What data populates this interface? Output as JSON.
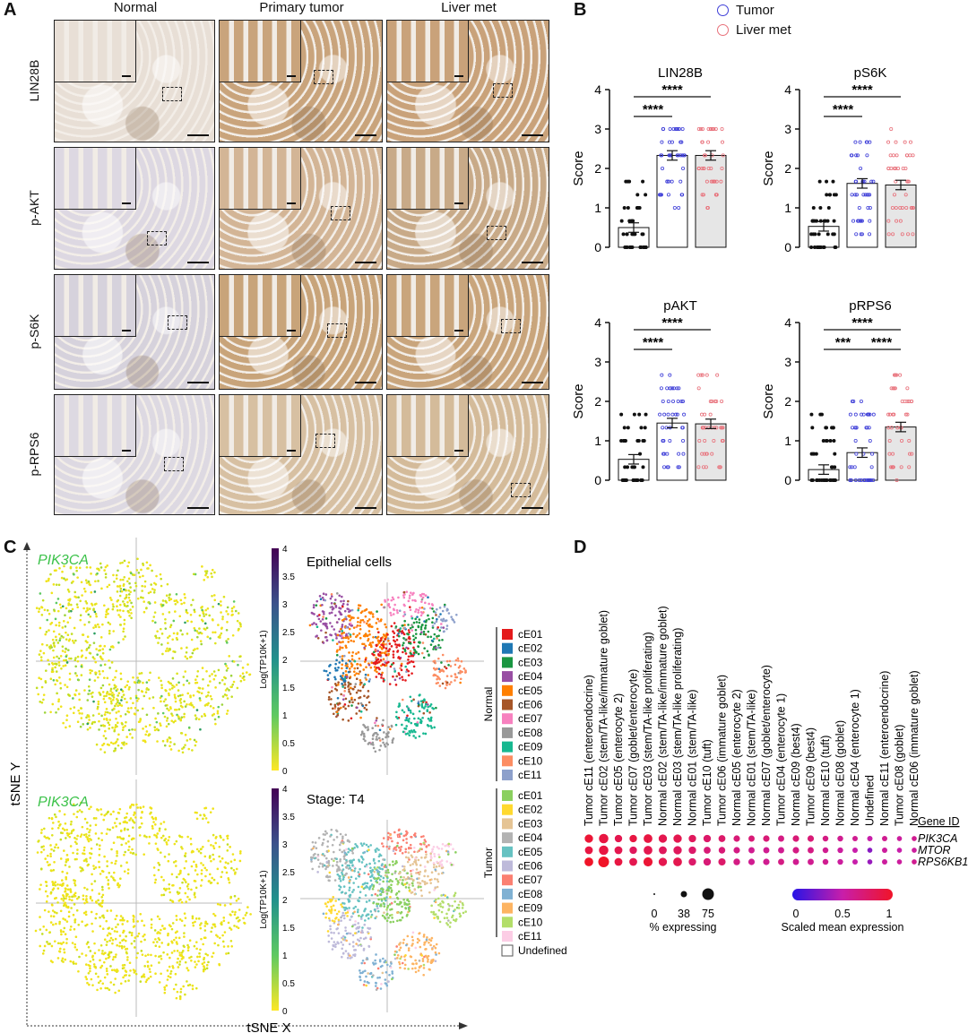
{
  "panelA": {
    "letter": "A",
    "columns": [
      "Normal",
      "Primary tumor",
      "Liver met"
    ],
    "rows": [
      "LIN28B",
      "p-AKT",
      "p-S6K",
      "p-RPS6"
    ]
  },
  "panelB": {
    "letter": "B",
    "legend": [
      {
        "label": "Tumor",
        "color": "#3f3fd8"
      },
      {
        "label": "Liver met",
        "color": "#e8707a"
      }
    ]
  },
  "panelC": {
    "letter": "C",
    "gene": "PIK3CA",
    "title_top": "Epithelial cells",
    "title_bottom": "Stage: T4",
    "colorbar_label": "Log(TP10K+1)",
    "colorbar_ticks": [
      "4",
      "3.5",
      "3",
      "2.5",
      "2",
      "1.5",
      "1",
      "0.5",
      "0"
    ],
    "axis_y": "tSNE Y",
    "axis_x": "tSNE X",
    "group_normal": "Normal",
    "group_tumor": "Tumor",
    "normal_clusters": [
      {
        "name": "cE01",
        "color": "#e41a1c"
      },
      {
        "name": "cE02",
        "color": "#1f78b4"
      },
      {
        "name": "cE03",
        "color": "#1a9641"
      },
      {
        "name": "cE04",
        "color": "#984ea3"
      },
      {
        "name": "cE05",
        "color": "#ff7f00"
      },
      {
        "name": "cE06",
        "color": "#a65628"
      },
      {
        "name": "cE07",
        "color": "#f781bf"
      },
      {
        "name": "cE08",
        "color": "#999999"
      },
      {
        "name": "cE09",
        "color": "#17b890"
      },
      {
        "name": "cE10",
        "color": "#fc8d62"
      },
      {
        "name": "cE11",
        "color": "#8da0cb"
      }
    ],
    "tumor_clusters": [
      {
        "name": "cE01",
        "color": "#8bd05f"
      },
      {
        "name": "cE02",
        "color": "#ffd92f"
      },
      {
        "name": "cE03",
        "color": "#e5c494"
      },
      {
        "name": "cE04",
        "color": "#b3b3b3"
      },
      {
        "name": "cE05",
        "color": "#66c2c2"
      },
      {
        "name": "cE06",
        "color": "#bebada"
      },
      {
        "name": "cE07",
        "color": "#fb8072"
      },
      {
        "name": "cE08",
        "color": "#80b1d3"
      },
      {
        "name": "cE09",
        "color": "#fdb462"
      },
      {
        "name": "cE10",
        "color": "#b3de69"
      },
      {
        "name": "cE11",
        "color": "#fccde5"
      }
    ],
    "undefined_label": "Undefined"
  },
  "panelD": {
    "letter": "D",
    "gene_id_label": "Gene ID",
    "genes": [
      "PIK3CA",
      "MTOR",
      "RPS6KB1"
    ],
    "columns": [
      "Tumor cE11 (enteroendocrine)",
      "Tumor cE02 (stem/TA-like/immature goblet)",
      "Tumor cE05 (enterocyte 2)",
      "Tumor cE07 (goblet/enterocyte)",
      "Tumor cE03 (stem/TA-like proliferating)",
      "Normal cE02 (stem/TA-like/immature goblet)",
      "Normal cE03 (stem/TA-like proliferating)",
      "Normal cE01 (stem/TA-like)",
      "Tumor cE10 (tuft)",
      "Tumor cE06 (immature goblet)",
      "Normal cE05 (enterocyte 2)",
      "Normal cE01 (stem/TA-like)",
      "Normal cE07 (goblet/enterocyte)",
      "Tumor cE04 (enterocyte 1)",
      "Normal cE09 (best4)",
      "Tumor cE09 (best4)",
      "Normal cE10 (tuft)",
      "Normal cE08 (goblet)",
      "Normal cE04 (enterocyte 1)",
      "Undefined",
      "Normal cE11 (enteroendocrine)",
      "Tumor cE08 (goblet)",
      "Normal cE06 (immature goblet)"
    ],
    "size_legend_title": "% expressing",
    "size_legend_ticks": [
      "0",
      "38",
      "75"
    ],
    "color_legend_title": "Scaled mean expression",
    "color_legend_ticks": [
      "0",
      "0.5",
      "1"
    ],
    "dot_matrix": [
      {
        "pct": [
          40,
          55,
          30,
          30,
          45,
          40,
          40,
          30,
          30,
          25,
          20,
          18,
          20,
          18,
          20,
          20,
          15,
          15,
          12,
          12,
          12,
          10,
          10
        ],
        "expr": [
          0.95,
          0.9,
          0.85,
          0.9,
          0.9,
          0.85,
          0.85,
          0.8,
          0.75,
          0.75,
          0.7,
          0.7,
          0.7,
          0.65,
          0.7,
          0.7,
          0.65,
          0.6,
          0.6,
          0.5,
          0.6,
          0.55,
          0.6
        ]
      },
      {
        "pct": [
          35,
          55,
          35,
          30,
          45,
          35,
          40,
          30,
          25,
          22,
          20,
          18,
          18,
          18,
          20,
          18,
          15,
          14,
          12,
          10,
          12,
          10,
          10
        ],
        "expr": [
          0.9,
          0.9,
          0.85,
          0.8,
          0.85,
          0.8,
          0.8,
          0.75,
          0.7,
          0.7,
          0.65,
          0.6,
          0.6,
          0.6,
          0.65,
          0.65,
          0.6,
          0.55,
          0.5,
          0.3,
          0.55,
          0.5,
          0.55
        ]
      },
      {
        "pct": [
          45,
          75,
          35,
          35,
          50,
          40,
          45,
          30,
          30,
          28,
          22,
          20,
          20,
          18,
          18,
          18,
          15,
          14,
          12,
          10,
          12,
          10,
          10
        ],
        "expr": [
          1,
          1,
          0.9,
          0.85,
          0.95,
          0.85,
          0.85,
          0.75,
          0.7,
          0.75,
          0.65,
          0.6,
          0.6,
          0.65,
          0.6,
          0.6,
          0.6,
          0.55,
          0.5,
          0.35,
          0.55,
          0.55,
          0.6
        ]
      }
    ]
  },
  "chart_data": [
    {
      "type": "bar",
      "title": "LIN28B",
      "ylabel": "Score",
      "ylim": [
        0,
        4
      ],
      "categories": [
        "Normal",
        "Tumor",
        "Liver met"
      ],
      "values": [
        0.5,
        2.33,
        2.33
      ],
      "significance": [
        {
          "pair": "Normal-Tumor",
          "label": "****"
        },
        {
          "pair": "Normal-Liver met",
          "label": "****"
        }
      ]
    },
    {
      "type": "bar",
      "title": "pS6K",
      "ylabel": "Score",
      "ylim": [
        0,
        4
      ],
      "categories": [
        "Normal",
        "Tumor",
        "Liver met"
      ],
      "values": [
        0.53,
        1.62,
        1.58
      ],
      "significance": [
        {
          "pair": "Normal-Tumor",
          "label": "****"
        },
        {
          "pair": "Normal-Liver met",
          "label": "****"
        }
      ]
    },
    {
      "type": "bar",
      "title": "pAKT",
      "ylabel": "Score",
      "ylim": [
        0,
        4
      ],
      "categories": [
        "Normal",
        "Tumor",
        "Liver met"
      ],
      "values": [
        0.53,
        1.45,
        1.43
      ],
      "significance": [
        {
          "pair": "Normal-Tumor",
          "label": "****"
        },
        {
          "pair": "Normal-Liver met",
          "label": "****"
        }
      ]
    },
    {
      "type": "bar",
      "title": "pRPS6",
      "ylabel": "Score",
      "ylim": [
        0,
        4
      ],
      "categories": [
        "Normal",
        "Tumor",
        "Liver met"
      ],
      "values": [
        0.27,
        0.7,
        1.35
      ],
      "significance": [
        {
          "pair": "Normal-Tumor",
          "label": "***"
        },
        {
          "pair": "Normal-Liver met",
          "label": "****"
        },
        {
          "pair": "Tumor-Liver met",
          "label": "****"
        }
      ]
    }
  ]
}
